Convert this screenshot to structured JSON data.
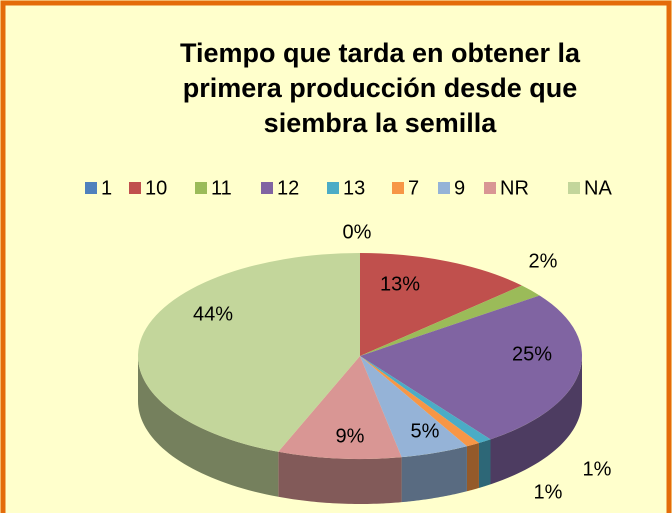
{
  "chart_data": {
    "type": "pie3d",
    "title": [
      "Tiempo que tarda en obtener la",
      "primera producción desde que",
      "siembra la semilla"
    ],
    "categories": [
      "1",
      "10",
      "11",
      "12",
      "13",
      "7",
      "9",
      "NR",
      "NA"
    ],
    "values": [
      0,
      13,
      2,
      25,
      1,
      1,
      5,
      9,
      44
    ],
    "value_labels": [
      "0%",
      "13%",
      "2%",
      "25%",
      "1%",
      "1%",
      "5%",
      "9%",
      "44%"
    ],
    "colors": [
      "#4f81bd",
      "#c0504d",
      "#9bbb59",
      "#8064a2",
      "#4bacc6",
      "#f79646",
      "#95b3d7",
      "#d99694",
      "#c3d69b"
    ],
    "legend": "top"
  }
}
